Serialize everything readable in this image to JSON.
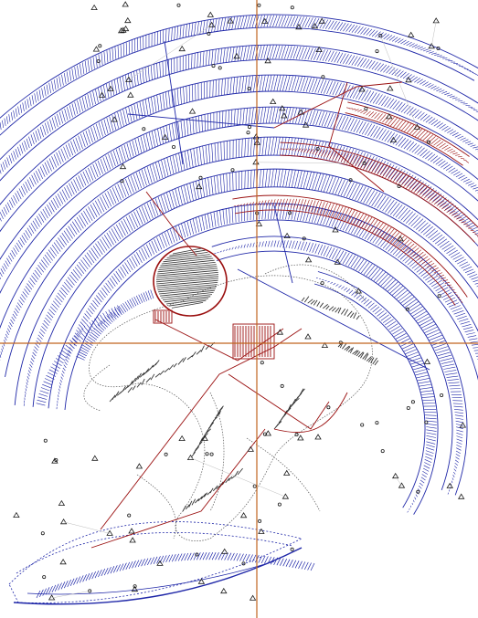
{
  "colors": {
    "background": "#ffffff",
    "wave_blue": "#1f27a8",
    "accent_red": "#9a0f0f",
    "crosshair": "#c0651f",
    "ink": "#1a1a1a",
    "gray": "#7a7a7a"
  },
  "crosshair": {
    "visible": true
  },
  "subject": "astronaut-surfing-wave-plotter-drawing"
}
